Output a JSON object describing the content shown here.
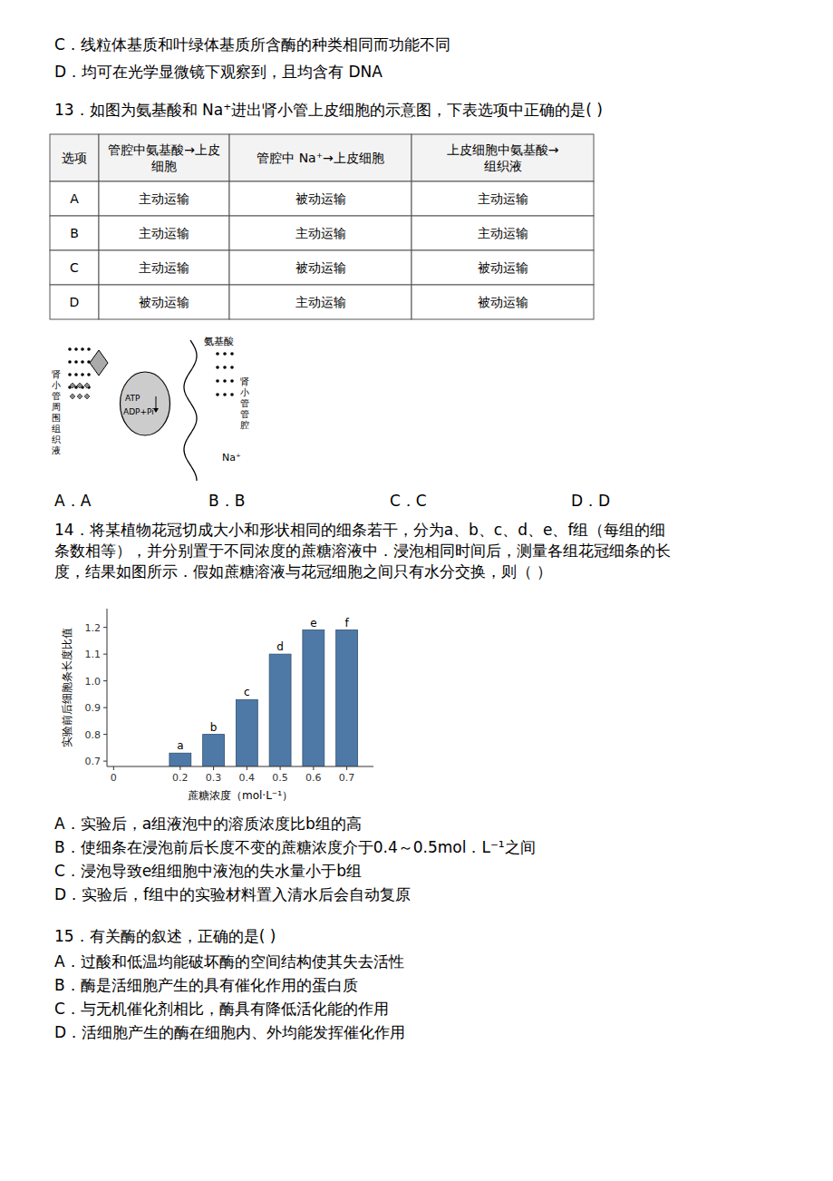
{
  "chart_data": {
    "type": "bar",
    "annotations": [
      "C．线粒体基质和叶绿体基质所含酶的种类相同而功能不同",
      "D．均可在光学显微镜下观察到，且均含有 DNA",
      "13．如图为氨基酸和 Na⁺进出肾小管上皮细胞的示意图，下表选项中正确的是(        )",
      "肾小管周围组织液",
      "ATP",
      "ADP+Pi",
      "氨基酸",
      "Na⁺",
      "肾小管管腔",
      "A．A",
      "B．B",
      "C．C",
      "D．D",
      "14．将某植物花冠切成大小和形状相同的细条若干，分为a、b、c、d、e、f组（每组的细",
      "条数相等），并分别置于不同浓度的蔗糖溶液中．浸泡相同时间后，测量各组花冠细条的长",
      "度，结果如图所示．假如蔗糖溶液与花冠细胞之间只有水分交换，则（        ）",
      "A．实验后，a组液泡中的溶质浓度比b组的高",
      "B．使细条在浸泡前后长度不变的蔗糖浓度介于0.4～0.5mol．L⁻¹之间",
      "C．浸泡导致e组细胞中液泡的失水量小于b组",
      "D．实验后，f组中的实验材料置入清水后会自动复原",
      "15．有关酶的叙述，正确的是(        )",
      "A．过酸和低温均能破坏酶的空间结构使其失去活性",
      "B．酶是活细胞产生的具有催化作用的蛋白质",
      "C．与无机催化剂相比，酶具有降低活化能的作用",
      "D．活细胞产生的酶在细胞内、外均能发挥催化作用"
    ],
    "table": {
      "headers": [
        "选项",
        "管腔中氨基酸→上皮\n细胞",
        "管腔中 Na⁺→上皮细胞",
        "上皮细胞中氨基酸→\n组织液"
      ],
      "rows": [
        [
          "A",
          "主动运输",
          "被动运输",
          "主动运输"
        ],
        [
          "B",
          "主动运输",
          "主动运输",
          "主动运输"
        ],
        [
          "C",
          "主动运输",
          "被动运输",
          "被动运输"
        ],
        [
          "D",
          "被动运输",
          "主动运输",
          "被动运输"
        ]
      ]
    },
    "categories": [
      "a",
      "b",
      "c",
      "d",
      "e",
      "f"
    ],
    "x": [
      0.2,
      0.3,
      0.4,
      0.5,
      0.6,
      0.7
    ],
    "values": [
      0.73,
      0.8,
      0.93,
      1.1,
      1.19,
      1.19
    ],
    "color": "#4e79a7",
    "x_label": "蔗糖浓度（mol·L⁻¹）",
    "y_label": "实验前后细胞条长度比值",
    "xlim": [
      -0.02,
      0.78
    ],
    "xticks": [
      0,
      0.2,
      0.3,
      0.4,
      0.5,
      0.6,
      0.7
    ],
    "ylim": [
      0.68,
      1.27
    ],
    "yticks": [
      0.7,
      0.8,
      0.9,
      {
        "value": 1.0,
        "label": "1.0"
      },
      1.1,
      1.2
    ],
    "grid": false
  }
}
